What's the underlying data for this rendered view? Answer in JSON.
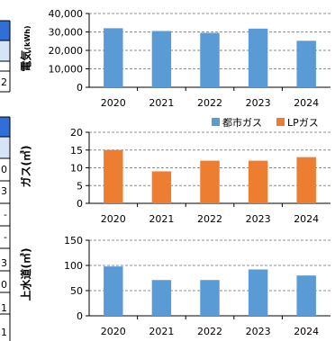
{
  "left_table": {
    "cells": [
      "2",
      "0",
      "3",
      "-",
      "-",
      "3",
      "0",
      "1",
      "1"
    ]
  },
  "chart_data": [
    {
      "type": "bar",
      "ylabel": "電気",
      "ylabel_unit": "(kWh)",
      "categories": [
        "2020",
        "2021",
        "2022",
        "2023",
        "2024"
      ],
      "series": [
        {
          "values": [
            32000,
            30500,
            29500,
            31800,
            25200
          ],
          "color": "#5b9bd5"
        }
      ],
      "ylim": [
        0,
        40000
      ],
      "yticks": [
        "0",
        "10,000",
        "20,000",
        "30,000",
        "40,000"
      ],
      "grid": true
    },
    {
      "type": "bar",
      "ylabel": "ガス(㎥)",
      "categories": [
        "2020",
        "2021",
        "2022",
        "2023",
        "2024"
      ],
      "series": [
        {
          "name": "都市ガス",
          "values": [
            0,
            0,
            0,
            0,
            0
          ],
          "color": "#5b9bd5"
        },
        {
          "name": "LPガス",
          "values": [
            15,
            9,
            12,
            12,
            13
          ],
          "color": "#ed7d31"
        }
      ],
      "ylim": [
        0,
        20
      ],
      "yticks": [
        "0",
        "5",
        "10",
        "15",
        "20"
      ],
      "legend_position": "top-right",
      "grid": true
    },
    {
      "type": "bar",
      "ylabel": "上水道(㎥)",
      "categories": [
        "2020",
        "2021",
        "2022",
        "2023",
        "2024"
      ],
      "series": [
        {
          "values": [
            98,
            71,
            71,
            92,
            80
          ],
          "color": "#5b9bd5"
        }
      ],
      "ylim": [
        0,
        150
      ],
      "yticks": [
        "0",
        "50",
        "100",
        "150"
      ],
      "grid": true
    }
  ]
}
